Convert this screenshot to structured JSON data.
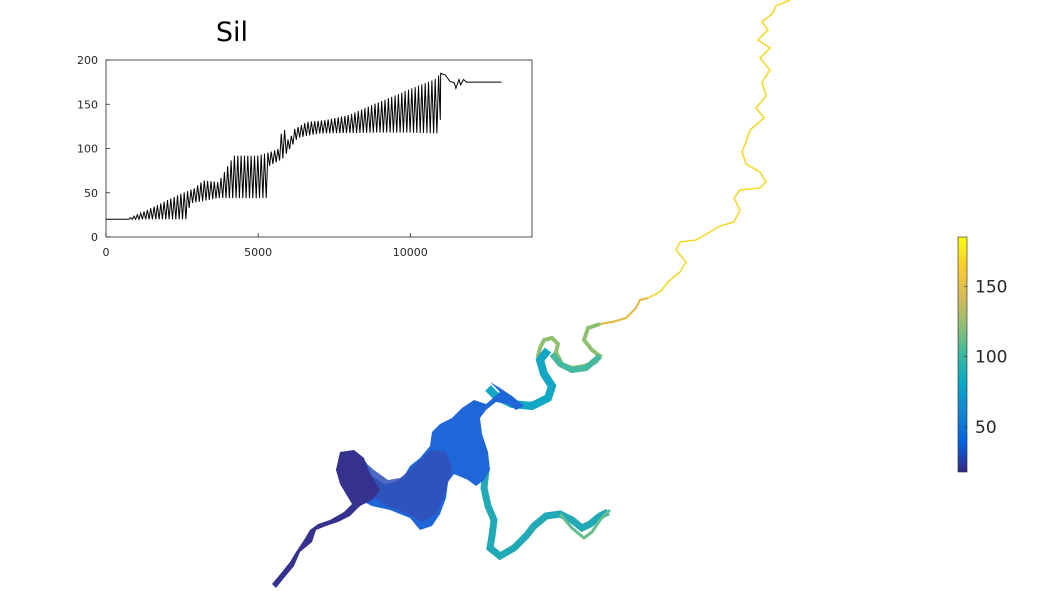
{
  "chart_data": [
    {
      "type": "line",
      "title": "Sil",
      "xlabel": "",
      "ylabel": "",
      "xlim": [
        0,
        14000
      ],
      "ylim": [
        0,
        200
      ],
      "x_ticks": [
        0,
        5000,
        10000
      ],
      "y_ticks": [
        0,
        50,
        100,
        150,
        200
      ],
      "grid": false,
      "series": [
        {
          "color": "#000000",
          "envelope_upper": [
            [
              0,
              20
            ],
            [
              700,
              20
            ],
            [
              1200,
              28
            ],
            [
              1800,
              38
            ],
            [
              2400,
              48
            ],
            [
              2900,
              55
            ],
            [
              3200,
              64
            ],
            [
              3700,
              62
            ],
            [
              4200,
              92
            ],
            [
              5000,
              92
            ],
            [
              5300,
              95
            ],
            [
              5700,
              100
            ],
            [
              5800,
              128
            ],
            [
              6000,
              108
            ],
            [
              6200,
              122
            ],
            [
              6600,
              130
            ],
            [
              7200,
              132
            ],
            [
              8000,
              138
            ],
            [
              8800,
              150
            ],
            [
              9500,
              160
            ],
            [
              10200,
              170
            ],
            [
              10800,
              178
            ],
            [
              11000,
              185
            ]
          ],
          "envelope_lower": [
            [
              0,
              20
            ],
            [
              700,
              20
            ],
            [
              1500,
              20
            ],
            [
              2000,
              20
            ],
            [
              2700,
              20
            ],
            [
              2750,
              38
            ],
            [
              3100,
              40
            ],
            [
              3700,
              44
            ],
            [
              4400,
              44
            ],
            [
              5300,
              44
            ],
            [
              5350,
              80
            ],
            [
              5800,
              88
            ],
            [
              6300,
              112
            ],
            [
              7000,
              117
            ],
            [
              9000,
              118
            ],
            [
              10000,
              118
            ],
            [
              10900,
              117
            ],
            [
              11000,
              135
            ]
          ],
          "tail": [
            [
              11000,
              185
            ],
            [
              11150,
              183
            ],
            [
              11300,
              176
            ],
            [
              11450,
              174
            ],
            [
              11500,
              168
            ],
            [
              11600,
              178
            ],
            [
              11650,
              172
            ],
            [
              11750,
              178
            ],
            [
              11850,
              175
            ],
            [
              12400,
              175
            ],
            [
              13000,
              175
            ]
          ]
        }
      ]
    },
    {
      "type": "heatmap",
      "colorbar": {
        "range": [
          18,
          185
        ],
        "ticks": [
          50,
          100,
          150
        ],
        "colormap": [
          "#352a87",
          "#0363e1",
          "#1485d4",
          "#06a7c6",
          "#38b99e",
          "#92bf73",
          "#d9ba56",
          "#fcce2e",
          "#f9fb0e"
        ]
      }
    }
  ]
}
